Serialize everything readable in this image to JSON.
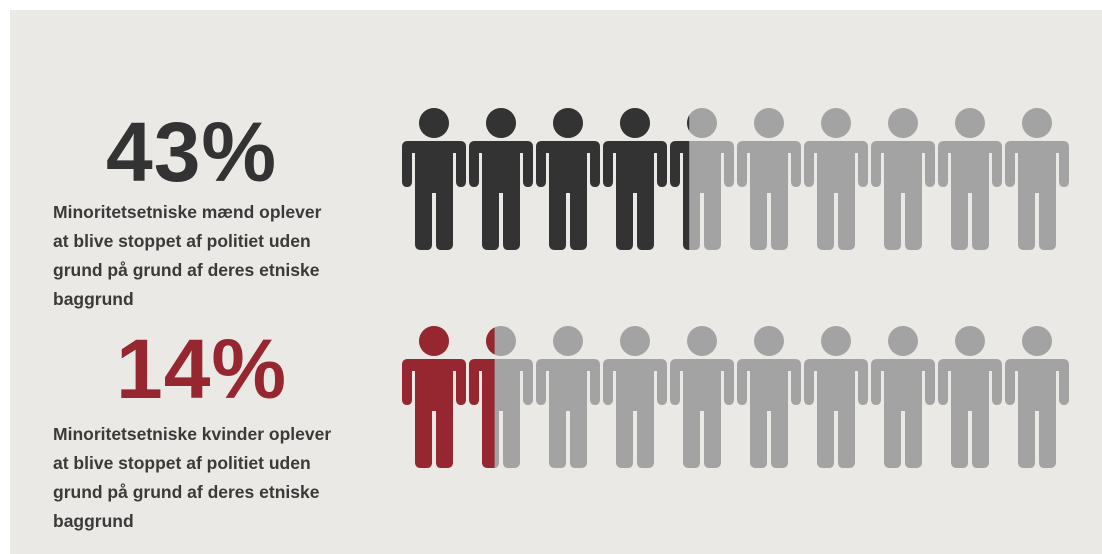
{
  "colors": {
    "background": "#ebe9e5",
    "inactive": "#a3a3a3",
    "men": "#333333",
    "women": "#962630",
    "caption": "#3a3a3a"
  },
  "icon": "person-icon",
  "chart_data": [
    {
      "type": "pictogram",
      "icons_total": 10,
      "value": 43,
      "label": "43%",
      "caption_lines": [
        "Minoritetsetniske mænd oplever",
        "at blive stoppet af politiet uden",
        "grund på grund af deres etniske",
        "baggrund"
      ],
      "color": "#333333"
    },
    {
      "type": "pictogram",
      "icons_total": 10,
      "value": 14,
      "label": "14%",
      "caption_lines": [
        "Minoritetsetniske kvinder oplever",
        "at blive stoppet af politiet uden",
        "grund på grund af deres etniske",
        "baggrund"
      ],
      "color": "#962630"
    }
  ]
}
